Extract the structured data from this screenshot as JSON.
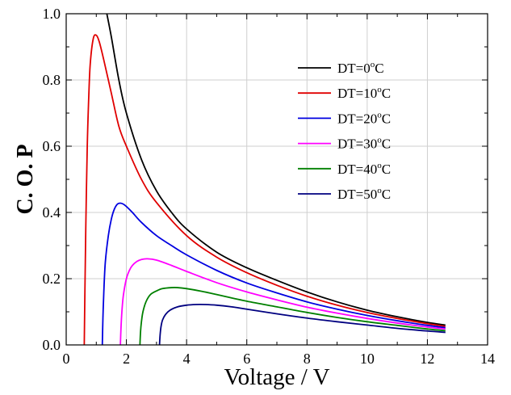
{
  "chart_data": {
    "type": "line",
    "title": "",
    "xlabel": "Voltage / V",
    "ylabel": "C. O. P",
    "xlim": [
      0,
      14
    ],
    "ylim": [
      0,
      1.0
    ],
    "xticks": [
      "0",
      "2",
      "4",
      "6",
      "8",
      "10",
      "12",
      "14"
    ],
    "yticks": [
      "0.0",
      "0.2",
      "0.4",
      "0.6",
      "0.8",
      "1.0"
    ],
    "grid": true,
    "legend_position": "top-right",
    "series": [
      {
        "name": "DT=0°C",
        "legend_main": "DT=0",
        "legend_sup": "o",
        "legend_unit": "C",
        "color": "#000000",
        "x": [
          1.35,
          1.5,
          1.75,
          2.0,
          2.5,
          3.0,
          3.5,
          4.0,
          5.0,
          6.0,
          7.0,
          8.0,
          9.0,
          10.0,
          11.0,
          12.0,
          12.6
        ],
        "y": [
          1.0,
          0.93,
          0.8,
          0.7,
          0.56,
          0.465,
          0.4,
          0.35,
          0.28,
          0.233,
          0.195,
          0.16,
          0.13,
          0.105,
          0.085,
          0.068,
          0.06
        ]
      },
      {
        "name": "DT=10°C",
        "legend_main": "DT=10",
        "legend_sup": "o",
        "legend_unit": "C",
        "color": "#e00000",
        "x": [
          0.6,
          0.62,
          0.65,
          0.7,
          0.75,
          0.8,
          0.9,
          1.0,
          1.1,
          1.25,
          1.5,
          1.75,
          2.0,
          2.5,
          3.0,
          4.0,
          5.0,
          6.0,
          7.0,
          8.0,
          9.0,
          10.0,
          11.0,
          12.0,
          12.6
        ],
        "y": [
          0.0,
          0.15,
          0.35,
          0.6,
          0.75,
          0.85,
          0.925,
          0.935,
          0.915,
          0.86,
          0.76,
          0.66,
          0.6,
          0.5,
          0.43,
          0.33,
          0.265,
          0.218,
          0.18,
          0.147,
          0.12,
          0.098,
          0.08,
          0.064,
          0.056
        ]
      },
      {
        "name": "DT=20°C",
        "legend_main": "DT=20",
        "legend_sup": "o",
        "legend_unit": "C",
        "color": "#0000e0",
        "x": [
          1.2,
          1.22,
          1.25,
          1.3,
          1.4,
          1.5,
          1.6,
          1.7,
          1.8,
          1.9,
          2.0,
          2.2,
          2.5,
          3.0,
          3.5,
          4.0,
          5.0,
          6.0,
          7.0,
          8.0,
          9.0,
          10.0,
          11.0,
          12.0,
          12.6
        ],
        "y": [
          0.0,
          0.08,
          0.16,
          0.25,
          0.33,
          0.38,
          0.41,
          0.425,
          0.428,
          0.425,
          0.418,
          0.4,
          0.37,
          0.33,
          0.3,
          0.272,
          0.225,
          0.187,
          0.157,
          0.13,
          0.108,
          0.089,
          0.073,
          0.059,
          0.052
        ]
      },
      {
        "name": "DT=30°C",
        "legend_main": "DT=30",
        "legend_sup": "o",
        "legend_unit": "C",
        "color": "#ff00ff",
        "x": [
          1.8,
          1.82,
          1.85,
          1.9,
          2.0,
          2.1,
          2.2,
          2.35,
          2.5,
          2.7,
          3.0,
          3.5,
          4.0,
          5.0,
          6.0,
          7.0,
          8.0,
          9.0,
          10.0,
          11.0,
          12.0,
          12.6
        ],
        "y": [
          0.0,
          0.05,
          0.1,
          0.15,
          0.2,
          0.225,
          0.24,
          0.252,
          0.258,
          0.26,
          0.256,
          0.24,
          0.222,
          0.188,
          0.16,
          0.136,
          0.114,
          0.096,
          0.08,
          0.066,
          0.054,
          0.048
        ]
      },
      {
        "name": "DT=40°C",
        "legend_main": "DT=40",
        "legend_sup": "o",
        "legend_unit": "C",
        "color": "#008000",
        "x": [
          2.45,
          2.47,
          2.5,
          2.55,
          2.65,
          2.8,
          3.0,
          3.2,
          3.5,
          3.7,
          4.0,
          4.5,
          5.0,
          6.0,
          7.0,
          8.0,
          9.0,
          10.0,
          11.0,
          12.0,
          12.6
        ],
        "y": [
          0.0,
          0.04,
          0.07,
          0.1,
          0.13,
          0.152,
          0.163,
          0.17,
          0.173,
          0.173,
          0.17,
          0.162,
          0.152,
          0.132,
          0.115,
          0.098,
          0.083,
          0.07,
          0.059,
          0.048,
          0.043
        ]
      },
      {
        "name": "DT=50°C",
        "legend_main": "DT=50",
        "legend_sup": "o",
        "legend_unit": "C",
        "color": "#000080",
        "x": [
          3.1,
          3.12,
          3.15,
          3.2,
          3.3,
          3.45,
          3.7,
          4.0,
          4.3,
          4.6,
          5.0,
          5.5,
          6.0,
          7.0,
          8.0,
          9.0,
          10.0,
          11.0,
          12.0,
          12.6
        ],
        "y": [
          0.0,
          0.03,
          0.055,
          0.075,
          0.092,
          0.105,
          0.115,
          0.12,
          0.122,
          0.122,
          0.12,
          0.115,
          0.108,
          0.094,
          0.081,
          0.07,
          0.06,
          0.05,
          0.042,
          0.038
        ]
      }
    ]
  }
}
